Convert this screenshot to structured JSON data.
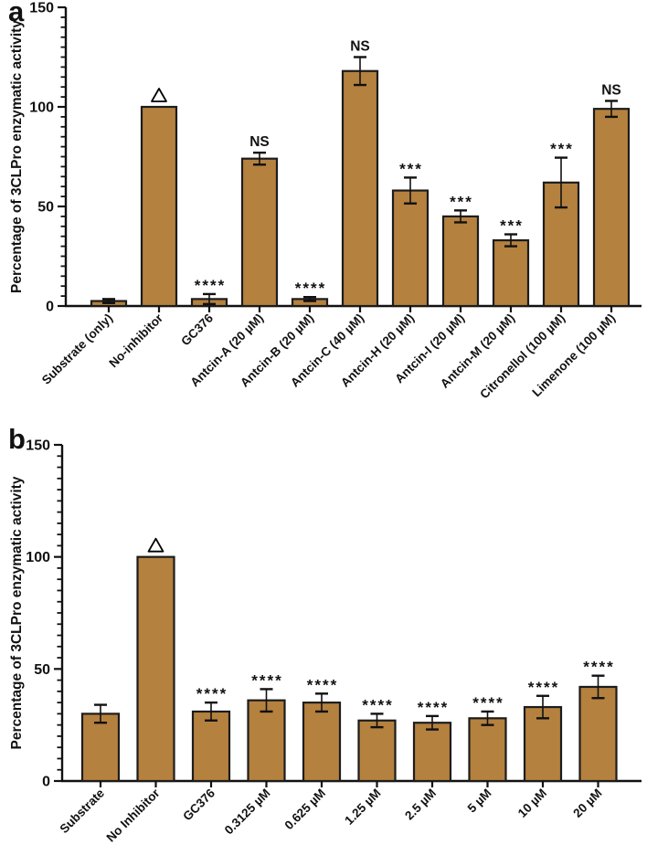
{
  "figure": {
    "bar_fill": "#b5813f",
    "bar_stroke": "#1c1c1c",
    "axis_color": "#111111",
    "background": "#ffffff"
  },
  "chart_data": [
    {
      "type": "bar",
      "panel_label": "a",
      "title": "",
      "xlabel": "",
      "ylabel": "Percentage of 3CLPro enzymatic activity",
      "ylim": [
        0,
        150
      ],
      "yticks": [
        0,
        50,
        100,
        150
      ],
      "minor_tick_step": 5,
      "grid": false,
      "legend": "none",
      "categories": [
        "Substrate (only)",
        "No-inhibitor",
        "GC376",
        "Antcin-A (20 µM)",
        "Antcin-B (20 µM)",
        "Antcin-C (40 µM)",
        "Antcin-H (20 µM)",
        "Antcin-I (20 µM)",
        "Antcin-M (20 µM)",
        "Citronellol (100 µM)",
        "Limenone (100 µM)"
      ],
      "values": [
        2.5,
        100,
        3.5,
        74,
        3.5,
        118,
        58,
        45,
        33,
        62,
        99
      ],
      "errors": [
        1,
        0,
        2.5,
        3,
        1,
        7,
        6.5,
        3,
        3,
        12.5,
        4
      ],
      "annotations": [
        "",
        "Δ",
        "****",
        "NS",
        "****",
        "NS",
        "***",
        "***",
        "***",
        "***",
        "NS"
      ]
    },
    {
      "type": "bar",
      "panel_label": "b",
      "title": "",
      "xlabel": "",
      "ylabel": "Percentage of 3CLPro enzymatic activity",
      "ylim": [
        0,
        150
      ],
      "yticks": [
        0,
        50,
        100,
        150
      ],
      "minor_tick_step": 5,
      "grid": false,
      "legend": "none",
      "categories": [
        "Substrate",
        "No Inhibitor",
        "GC376",
        "0.3125 µM",
        "0.625 µM",
        "1.25 µM",
        "2.5 µM",
        "5 µM",
        "10 µM",
        "20 µM"
      ],
      "values": [
        30,
        100,
        31,
        36,
        35,
        27,
        26,
        28,
        33,
        42
      ],
      "errors": [
        4,
        0,
        4,
        5,
        4,
        3,
        3,
        3,
        5,
        5
      ],
      "annotations": [
        "",
        "Δ",
        "****",
        "****",
        "****",
        "****",
        "****",
        "****",
        "****",
        "****"
      ]
    }
  ]
}
